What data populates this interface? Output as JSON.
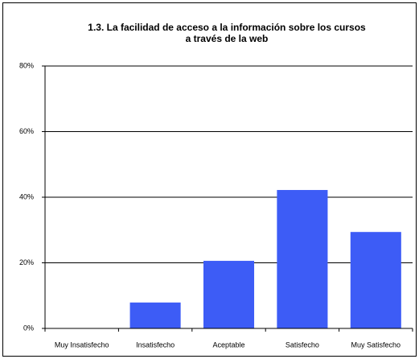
{
  "chart_data": {
    "type": "bar",
    "title": [
      "1.3. La facilidad de acceso a la información sobre los cursos",
      "a través de la web"
    ],
    "categories": [
      "Muy Insatisfecho",
      "Insatisfecho",
      "Aceptable",
      "Satisfecho",
      "Muy Satisfecho"
    ],
    "values": [
      0,
      7.9,
      20.6,
      42.2,
      29.4
    ],
    "color": "#3d5cf6",
    "ylim": [
      0,
      80
    ],
    "yticks": [
      {
        "value": 0,
        "label": "0%"
      },
      {
        "value": 20,
        "label": "20%"
      },
      {
        "value": 40,
        "label": "40%"
      },
      {
        "value": 60,
        "label": "60%"
      },
      {
        "value": 80,
        "label": "80%"
      }
    ],
    "grid": true
  }
}
